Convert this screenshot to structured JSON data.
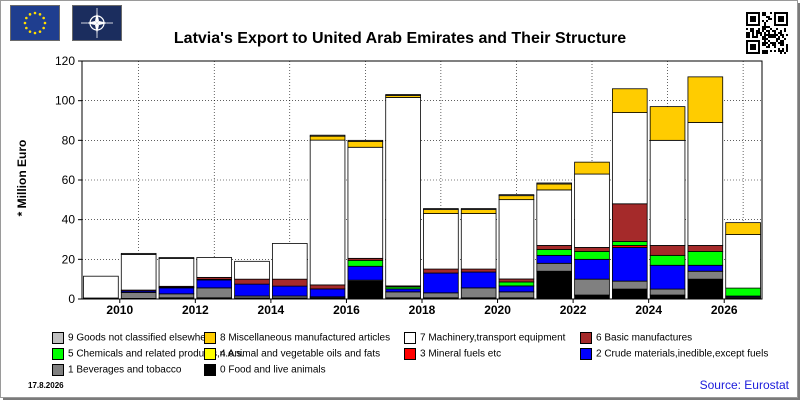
{
  "header": {
    "eu_flag_icon": "eu-flag-icon",
    "nato_flag_icon": "nato-flag-icon",
    "qr_icon": "qr-code-icon"
  },
  "footer": {
    "date": "17.8.2026",
    "source": "Source: Eurostat"
  },
  "chart_data": {
    "type": "bar",
    "stacked": true,
    "title": "Latvia's Export to United Arab Emirates and Their Structure",
    "xlabel": "",
    "ylabel": "* Million Euro",
    "ylim": [
      0,
      120
    ],
    "yticks": [
      0,
      20,
      40,
      60,
      80,
      100,
      120
    ],
    "grid": true,
    "legend_position": "bottom",
    "categories": [
      "2009",
      "2010",
      "2011",
      "2012",
      "2013",
      "2014",
      "2015",
      "2016",
      "2017",
      "2018",
      "2019",
      "2020",
      "2021",
      "2022",
      "2023",
      "2024",
      "2025",
      "2026"
    ],
    "x_tick_labels": [
      "2010",
      "2012",
      "2014",
      "2016",
      "2018",
      "2020",
      "2022",
      "2024",
      "2026"
    ],
    "series": [
      {
        "name": "0 Food and live animals",
        "color": "#000000",
        "values": [
          0,
          0.3,
          0.6,
          0.6,
          0.5,
          0.5,
          0.6,
          9,
          0.6,
          0.6,
          0.6,
          0.6,
          14,
          2,
          5,
          2,
          10,
          0.5
        ]
      },
      {
        "name": "1 Beverages and tobacco",
        "color": "#808080",
        "values": [
          0.5,
          3,
          2,
          5,
          1,
          1,
          0.5,
          0.5,
          3,
          2.5,
          5,
          3,
          4,
          8,
          4,
          3,
          4,
          0.5
        ]
      },
      {
        "name": "2 Crude materials,inedible,except fuels",
        "color": "#0000ff",
        "values": [
          0,
          0.7,
          3,
          4,
          6,
          5,
          4,
          7,
          1.5,
          10,
          8,
          3,
          4,
          10,
          17,
          12,
          3,
          0.5
        ]
      },
      {
        "name": "3 Mineral fuels etc",
        "color": "#ff0000",
        "values": [
          0,
          0,
          0.3,
          0.3,
          0,
          0,
          0,
          0,
          0,
          0,
          0,
          0,
          0,
          0,
          1,
          0,
          0,
          0
        ]
      },
      {
        "name": "4 Animal and vegetable oils and fats",
        "color": "#ffff00",
        "values": [
          0,
          0,
          0,
          0,
          0,
          0,
          0,
          0,
          0,
          0,
          0,
          0,
          0,
          0,
          0,
          0,
          0,
          0
        ]
      },
      {
        "name": "5 Chemicals and related products,n.e.s.",
        "color": "#00ff00",
        "values": [
          0,
          0,
          0,
          0,
          0,
          0,
          0,
          3,
          1,
          0,
          0,
          2,
          3,
          4,
          2,
          5,
          7,
          4
        ]
      },
      {
        "name": "6 Basic manufactures",
        "color": "#a52a2a",
        "values": [
          0,
          0.5,
          0.5,
          1,
          2.5,
          3.5,
          2,
          1,
          0.5,
          2,
          1.5,
          1.5,
          2,
          2,
          19,
          5,
          3,
          0
        ]
      },
      {
        "name": "7 Machinery,transport equipment",
        "color": "#ffffff",
        "values": [
          11,
          18,
          14,
          10,
          9,
          18,
          73,
          56,
          95,
          28,
          28,
          40,
          28,
          37,
          46,
          53,
          62,
          27
        ]
      },
      {
        "name": "8 Miscellaneous manufactured articles",
        "color": "#ffcc00",
        "values": [
          0,
          0,
          0,
          0,
          0,
          0,
          2,
          3,
          1,
          2,
          2,
          2,
          3,
          6,
          12,
          17,
          23,
          6
        ]
      },
      {
        "name": "9 Goods not classified elsewhere",
        "color": "#c0c0c0",
        "values": [
          0,
          0.5,
          0.5,
          0,
          0,
          0,
          0.5,
          0.5,
          0.5,
          0.5,
          0.5,
          0.5,
          0.5,
          0,
          0,
          0,
          0,
          0
        ]
      }
    ],
    "legend_rows": [
      [
        9,
        8,
        7,
        6
      ],
      [
        5,
        4,
        3,
        2
      ],
      [
        1,
        0
      ]
    ]
  }
}
